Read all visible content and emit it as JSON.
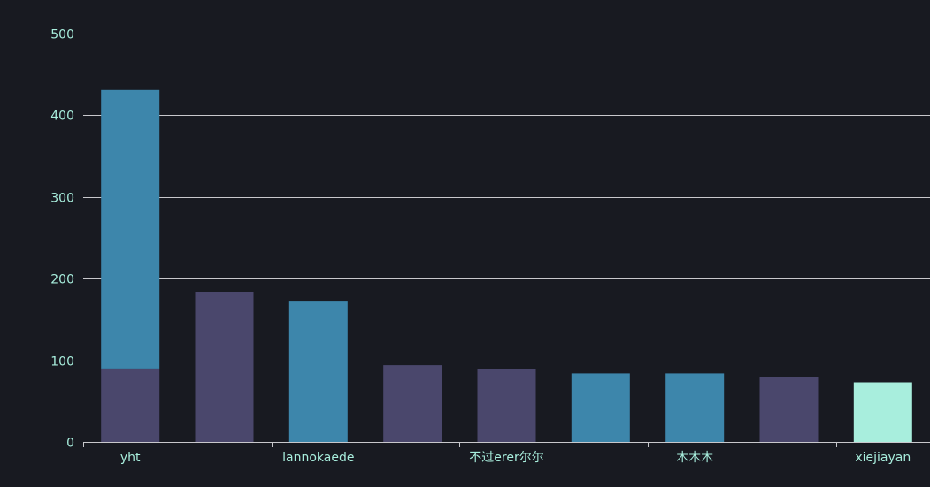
{
  "chart_data": {
    "type": "bar",
    "title": "",
    "xlabel": "",
    "ylabel": "",
    "ylim": [
      0,
      500
    ],
    "yticks": [
      "0",
      "100",
      "200",
      "300",
      "400",
      "500"
    ],
    "grid": true,
    "legend": "none",
    "x_tick_labels_shown": [
      "yht",
      "lannokaede",
      "不过erer尔尔",
      "木木木",
      "xiejiayan"
    ],
    "categories": [
      "yht",
      "",
      "lannokaede",
      "",
      "不过erer尔尔",
      "",
      "木木木",
      "",
      "xiejiayan"
    ],
    "stacks": [
      [
        {
          "value": 90,
          "color": "#4a476c"
        },
        {
          "value": 341,
          "color": "#3d86ab"
        }
      ],
      [
        {
          "value": 184,
          "color": "#4a476c"
        }
      ],
      [
        {
          "value": 172,
          "color": "#3d86ab"
        }
      ],
      [
        {
          "value": 94,
          "color": "#4a476c"
        }
      ],
      [
        {
          "value": 89,
          "color": "#4a476c"
        }
      ],
      [
        {
          "value": 84,
          "color": "#3d86ab"
        }
      ],
      [
        {
          "value": 84,
          "color": "#3d86ab"
        }
      ],
      [
        {
          "value": 79,
          "color": "#4a476c"
        }
      ],
      [
        {
          "value": 73,
          "color": "#a8eedd"
        }
      ]
    ],
    "colors": {
      "background": "#181a21",
      "grid": "#c8c8cc",
      "axis": "#c8c8cc",
      "text": "#a8eedd",
      "purple": "#4a476c",
      "blue": "#3d86ab",
      "mint": "#a8eedd"
    }
  }
}
